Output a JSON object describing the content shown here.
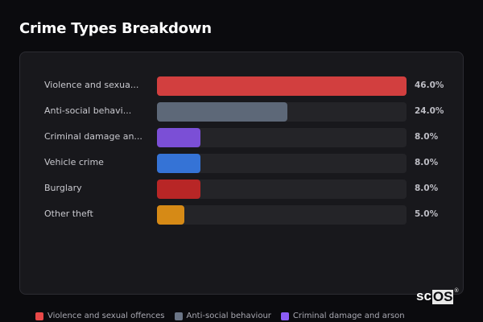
{
  "title": "Crime Types Breakdown",
  "rows": [
    {
      "label": "Violence and sexua...",
      "pct": "46.0%",
      "value": 46.0,
      "color": "#d23f3f"
    },
    {
      "label": "Anti-social behavi...",
      "pct": "24.0%",
      "value": 24.0,
      "color": "#5d6878"
    },
    {
      "label": "Criminal damage an...",
      "pct": "8.0%",
      "value": 8.0,
      "color": "#7b4fd6"
    },
    {
      "label": "Vehicle crime",
      "pct": "8.0%",
      "value": 8.0,
      "color": "#3573d6"
    },
    {
      "label": "Burglary",
      "pct": "8.0%",
      "value": 8.0,
      "color": "#b82626"
    },
    {
      "label": "Other theft",
      "pct": "5.0%",
      "value": 5.0,
      "color": "#d68a16"
    }
  ],
  "legend": [
    {
      "label": "Violence and sexual offences",
      "color": "#e84848"
    },
    {
      "label": "Anti-social behaviour",
      "color": "#6b7586"
    },
    {
      "label": "Criminal damage and arson",
      "color": "#8b5cf6"
    }
  ],
  "logo": {
    "prefix": "sc",
    "boxed": "OS",
    "mark": "®"
  },
  "chart_data": {
    "type": "bar",
    "orientation": "horizontal",
    "title": "Crime Types Breakdown",
    "categories": [
      "Violence and sexual offences",
      "Anti-social behaviour",
      "Criminal damage and arson",
      "Vehicle crime",
      "Burglary",
      "Other theft"
    ],
    "values": [
      46.0,
      24.0,
      8.0,
      8.0,
      8.0,
      5.0
    ],
    "unit": "%",
    "xlabel": "",
    "ylabel": "",
    "grid": false,
    "legend_position": "bottom"
  }
}
